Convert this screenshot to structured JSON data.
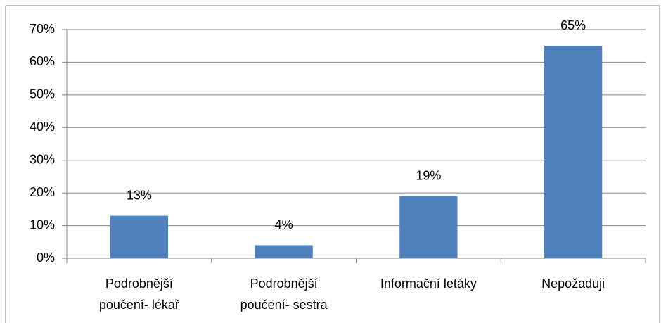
{
  "chart_data": {
    "type": "bar",
    "categories": [
      "Podrobnější poučení- lékař",
      "Podrobnější poučení- sestra",
      "Informační letáky",
      "Nepožaduji"
    ],
    "values": [
      13,
      4,
      19,
      65
    ],
    "value_labels": [
      "13%",
      "4%",
      "19%",
      "65%"
    ],
    "color": "#4f81bd",
    "ylim": [
      0,
      70
    ],
    "yticks": [
      {
        "value": 0,
        "label": "0%"
      },
      {
        "value": 10,
        "label": "10%"
      },
      {
        "value": 20,
        "label": "20%"
      },
      {
        "value": 30,
        "label": "30%"
      },
      {
        "value": 40,
        "label": "40%"
      },
      {
        "value": 50,
        "label": "50%"
      },
      {
        "value": 60,
        "label": "60%"
      },
      {
        "value": 70,
        "label": "70%"
      }
    ],
    "grid": true
  }
}
